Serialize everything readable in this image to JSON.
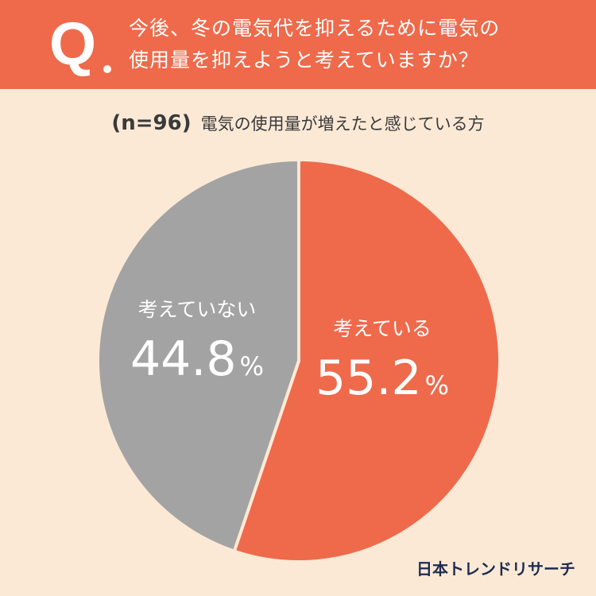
{
  "header": {
    "q_letter": "Q",
    "question_line1": "今後、冬の電気代を抑えるために電気の",
    "question_line2": "使用量を抑えようと考えていますか？"
  },
  "subtitle": {
    "sample": "(n=96)",
    "description": "電気の使用量が増えたと感じている方"
  },
  "chart_data": {
    "type": "pie",
    "title": "",
    "slices": [
      {
        "label": "考えている",
        "value": 55.2,
        "display": "55.2",
        "color": "#ee6a4b"
      },
      {
        "label": "考えていない",
        "value": 44.8,
        "display": "44.8",
        "color": "#a3a3a3"
      }
    ],
    "unit": "%"
  },
  "footer": {
    "brand": "日本トレンドリサーチ"
  },
  "colors": {
    "accent": "#ee6a4b",
    "background": "#fbe9d6",
    "gray": "#a3a3a3",
    "brand": "#1e2b4f"
  }
}
